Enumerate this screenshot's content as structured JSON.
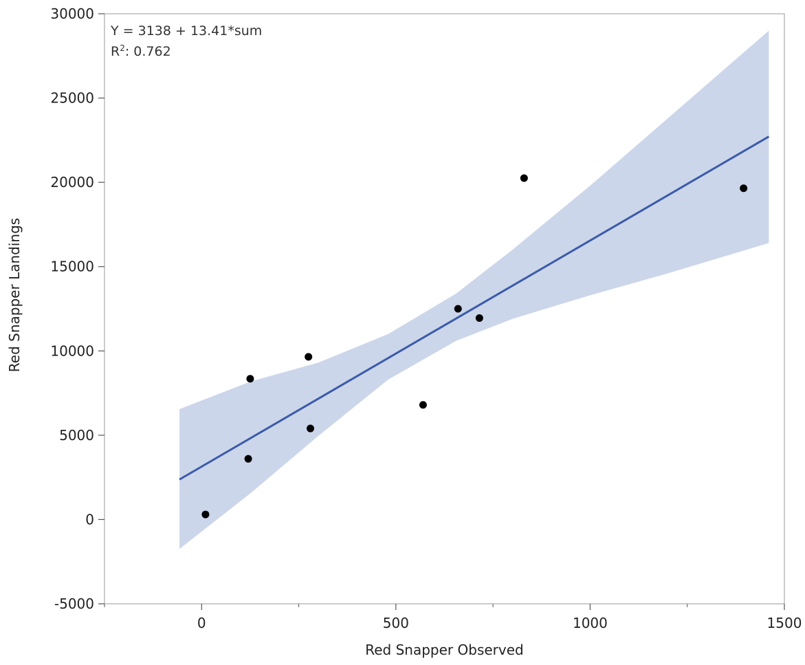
{
  "chart_data": {
    "type": "scatter",
    "xlabel": "Red Snapper Observed",
    "ylabel": "Red Snapper Landings",
    "xlim": [
      -250,
      1500
    ],
    "ylim": [
      -5000,
      30000
    ],
    "x_ticks": [
      0,
      500,
      1000,
      1500
    ],
    "x_minor_ticks": [
      -250,
      250,
      750,
      1250
    ],
    "y_ticks": [
      -5000,
      0,
      5000,
      10000,
      15000,
      20000,
      25000,
      30000
    ],
    "grid": false,
    "legend": "none",
    "points": [
      {
        "x": 10,
        "y": 300
      },
      {
        "x": 120,
        "y": 3600
      },
      {
        "x": 125,
        "y": 8350
      },
      {
        "x": 275,
        "y": 9650
      },
      {
        "x": 280,
        "y": 5400
      },
      {
        "x": 570,
        "y": 6800
      },
      {
        "x": 660,
        "y": 12500
      },
      {
        "x": 715,
        "y": 11950
      },
      {
        "x": 830,
        "y": 20250
      },
      {
        "x": 1395,
        "y": 19650
      }
    ],
    "fit": {
      "intercept": 3138,
      "slope": 13.41,
      "x_range": [
        -57,
        1460
      ],
      "equation_label": "Y = 3138 + 13.41*sum",
      "r2_prefix": "R",
      "r2_sup": "2",
      "r2_value": ": 0.762"
    },
    "confidence_band": {
      "x": [
        -57,
        128,
        300,
        480,
        655,
        800,
        1000,
        1200,
        1460
      ],
      "lower": [
        -1750,
        1600,
        4950,
        8300,
        10600,
        11900,
        13300,
        14600,
        16400
      ],
      "upper": [
        6550,
        8200,
        9300,
        11000,
        13400,
        16000,
        19800,
        23800,
        29000
      ]
    },
    "colors": {
      "point": "#000000",
      "line": "#3b5ba9",
      "band": "#ccd6ea",
      "axis": "#555555",
      "frame": "#aaaaaa"
    }
  }
}
